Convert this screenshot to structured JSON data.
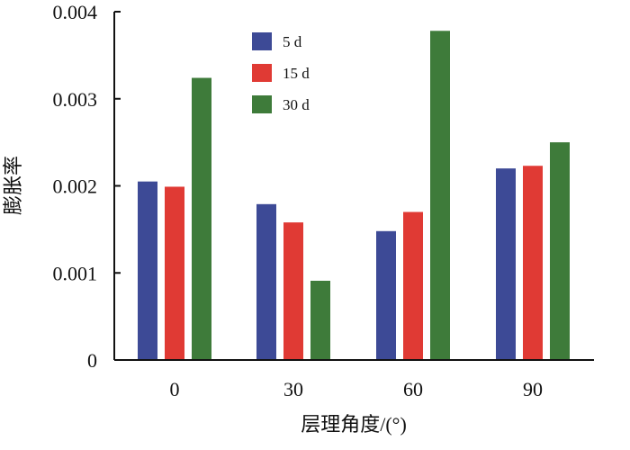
{
  "chart_data": {
    "type": "bar",
    "title": "",
    "xlabel": "层理角度/(°)",
    "ylabel": "膨胀率",
    "categories": [
      "0",
      "30",
      "60",
      "90"
    ],
    "ylim": [
      0,
      0.004
    ],
    "yticks": [
      "0",
      "0.001",
      "0.002",
      "0.003",
      "0.004"
    ],
    "ytick_values": [
      0,
      0.001,
      0.002,
      0.003,
      0.004
    ],
    "legend_position": "top-center",
    "grid": false,
    "series": [
      {
        "name": "5 d",
        "color": "#3d4a96",
        "values": [
          0.00205,
          0.00179,
          0.00148,
          0.0022
        ]
      },
      {
        "name": "15 d",
        "color": "#e03a34",
        "values": [
          0.00199,
          0.00158,
          0.0017,
          0.00223
        ]
      },
      {
        "name": "30 d",
        "color": "#3e7b3a",
        "values": [
          0.00324,
          0.00091,
          0.00378,
          0.0025
        ]
      }
    ]
  }
}
